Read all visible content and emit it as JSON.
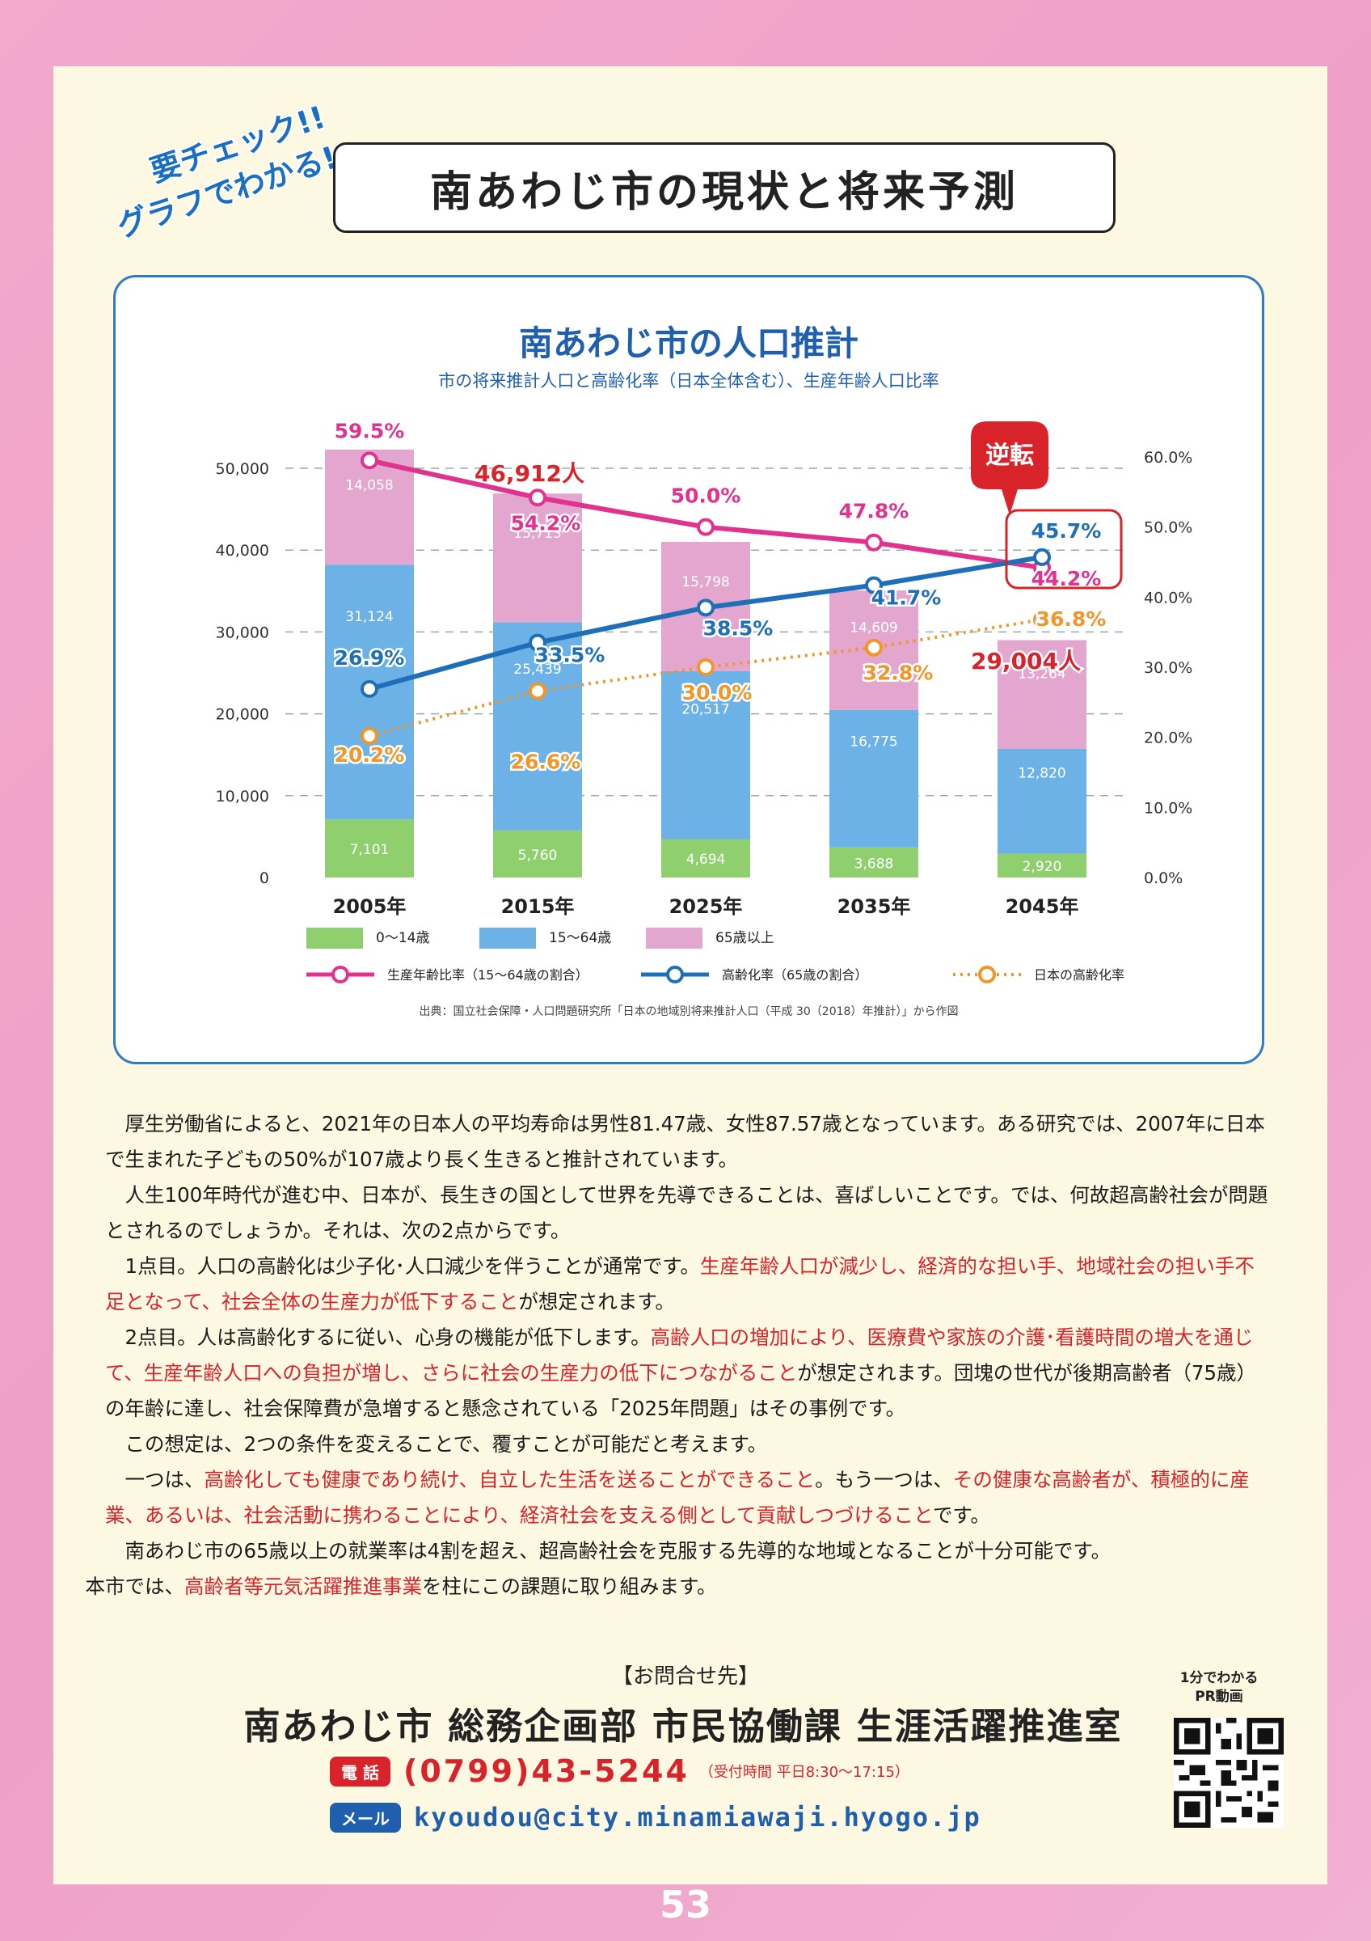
{
  "header": {
    "badge_line1": "要チェック!!",
    "badge_line2": "グラフでわかる!",
    "title": "南あわじ市の現状と将来予測"
  },
  "chart_data": {
    "type": "bar",
    "title": "南あわじ市の人口推計",
    "subtitle": "市の将来推計人口と高齢化率（日本全体含む）、生産年齢人口比率",
    "categories": [
      "2005年",
      "2015年",
      "2025年",
      "2035年",
      "2045年"
    ],
    "ylim": [
      0,
      50000
    ],
    "y_ticks": [
      "0",
      "10,000",
      "20,000",
      "30,000",
      "40,000",
      "50,000"
    ],
    "y2lim": [
      0,
      60
    ],
    "y2_ticks": [
      "0.0%",
      "10.0%",
      "20.0%",
      "30.0%",
      "40.0%",
      "50.0%",
      "60.0%"
    ],
    "stacked_series": [
      {
        "name": "0〜14歳",
        "color": "#8fcf6e",
        "values": [
          7101,
          5760,
          4694,
          3688,
          2920
        ],
        "labels": [
          "7,101",
          "5,760",
          "4,694",
          "3,688",
          "2,920"
        ]
      },
      {
        "name": "15〜64歳",
        "color": "#6cb2e6",
        "values": [
          31124,
          25439,
          20517,
          16775,
          12820
        ],
        "labels": [
          "31,124",
          "25,439",
          "20,517",
          "16,775",
          "12,820"
        ]
      },
      {
        "name": "65歳以上",
        "color": "#e3a6cf",
        "values": [
          14058,
          15713,
          15798,
          14609,
          13264
        ],
        "labels": [
          "14,058",
          "15,713",
          "15,798",
          "14,609",
          "13,264"
        ]
      }
    ],
    "line_series": [
      {
        "name": "生産年齢比率（15〜64歳の割合）",
        "color": "#e0338f",
        "style": "solid",
        "values": [
          59.5,
          54.2,
          50.0,
          47.8,
          44.2
        ],
        "labels": [
          "59.5%",
          "54.2%",
          "50.0%",
          "47.8%",
          "44.2%"
        ]
      },
      {
        "name": "高齢化率（65歳の割合）",
        "color": "#1f6fb8",
        "style": "solid",
        "values": [
          26.9,
          33.5,
          38.5,
          41.7,
          45.7
        ],
        "labels": [
          "26.9%",
          "33.5%",
          "38.5%",
          "41.7%",
          "45.7%"
        ]
      },
      {
        "name": "日本の高齢化率",
        "color": "#f0962a",
        "style": "dotted",
        "values": [
          20.2,
          26.6,
          30.0,
          32.8,
          36.8
        ],
        "labels": [
          "20.2%",
          "26.6%",
          "30.0%",
          "32.8%",
          "36.8%"
        ]
      }
    ],
    "annotations": {
      "total_2015": "46,912人",
      "total_2045": "29,004人",
      "reversal": "逆転"
    },
    "source": "出典：国立社会保障・人口問題研究所「日本の地域別将来推計人口（平成 30（2018）年推計）」から作図",
    "grid": true,
    "legend_placement": "bottom"
  },
  "body": {
    "p1": "厚生労働省によると、2021年の日本人の平均寿命は男性81.47歳、女性87.57歳となっています。ある研究では、2007年に日本で生まれた子どもの50%が107歳より長く生きると推計されています。",
    "p2": "人生100年時代が進む中、日本が、長生きの国として世界を先導できることは、喜ばしいことです。では、何故超高齢社会が問題とされるのでしょうか。それは、次の2点からです。",
    "p3_a": "1点目。人口の高齢化は少子化･人口減少を伴うことが通常です。",
    "p3_hl": "生産年齢人口が減少し、経済的な担い手、地域社会の担い手不足となって、社会全体の生産力が低下すること",
    "p3_b": "が想定されます。",
    "p4_a": "2点目。人は高齢化するに従い、心身の機能が低下します。",
    "p4_hl": "高齢人口の増加により、医療費や家族の介護･看護時間の増大を通じて、生産年齢人口への負担が増し、さらに社会の生産力の低下につながること",
    "p4_b": "が想定されます。団塊の世代が後期高齢者（75歳）の年齢に達し、社会保障費が急増すると懸念されている「2025年問題」はその事例です。",
    "p5": "この想定は、2つの条件を変えることで、覆すことが可能だと考えます。",
    "p6_a": "一つは、",
    "p6_hl1": "高齢化しても健康であり続け、自立した生活を送ることができること",
    "p6_b": "。もう一つは、",
    "p6_hl2": "その健康な高齢者が、積極的に産業、あるいは、社会活動に携わることにより、経済社会を支える側として貢献しつづけること",
    "p6_c": "です。",
    "p7": "南あわじ市の65歳以上の就業率は4割を超え、超高齢社会を克服する先導的な地域となることが十分可能です。",
    "p8_a": "本市では、",
    "p8_hl": "高齢者等元気活躍推進事業",
    "p8_b": "を柱にこの課題に取り組みます。"
  },
  "contact": {
    "heading": "【お問合せ先】",
    "org": "南あわじ市 総務企画部 市民協働課 生涯活躍推進室",
    "tel_label": "電 話",
    "tel": "(0799)43-5244",
    "hours": "（受付時間 平日8:30〜17:15）",
    "mail_label": "メール",
    "mail": "kyoudou@city.minamiawaji.hyogo.jp",
    "qr_label1": "1分でわかる",
    "qr_label2": "PR動画"
  },
  "page_number": "53"
}
